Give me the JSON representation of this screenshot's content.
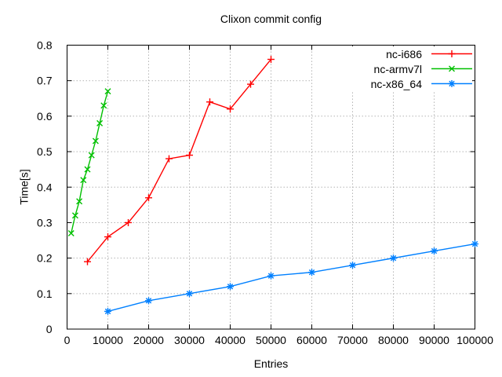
{
  "colors": {
    "background": "#ffffff",
    "grid": "#b4b4b4",
    "axis": "#000000",
    "text": "#000000"
  },
  "chart_data": {
    "type": "line",
    "title": "Clixon commit config",
    "xlabel": "Entries",
    "ylabel": "Time[s]",
    "xlim": [
      0,
      100000
    ],
    "ylim": [
      0,
      0.8
    ],
    "xticks": [
      0,
      10000,
      20000,
      30000,
      40000,
      50000,
      60000,
      70000,
      80000,
      90000,
      100000
    ],
    "xtick_labels": [
      "0",
      "10000",
      "20000",
      "30000",
      "40000",
      "50000",
      "60000",
      "70000",
      "80000",
      "90000",
      "100000"
    ],
    "yticks": [
      0,
      0.1,
      0.2,
      0.3,
      0.4,
      0.5,
      0.6,
      0.7,
      0.8
    ],
    "ytick_labels": [
      "0",
      "0.1",
      "0.2",
      "0.3",
      "0.4",
      "0.5",
      "0.6",
      "0.7",
      "0.8"
    ],
    "grid": true,
    "legend_position": "top-right-inside",
    "series": [
      {
        "name": "nc-i686",
        "color": "#ff0000",
        "marker": "plus",
        "x": [
          5000,
          10000,
          15000,
          20000,
          25000,
          30000,
          35000,
          40000,
          45000,
          50000
        ],
        "y": [
          0.19,
          0.26,
          0.3,
          0.37,
          0.48,
          0.49,
          0.64,
          0.62,
          0.69,
          0.76
        ]
      },
      {
        "name": "nc-armv7l",
        "color": "#00c000",
        "marker": "cross",
        "x": [
          1000,
          2000,
          3000,
          4000,
          5000,
          6000,
          7000,
          8000,
          9000,
          10000
        ],
        "y": [
          0.27,
          0.32,
          0.36,
          0.42,
          0.45,
          0.49,
          0.53,
          0.58,
          0.63,
          0.67
        ]
      },
      {
        "name": "nc-x86_64",
        "color": "#0080ff",
        "marker": "asterisk",
        "x": [
          10000,
          20000,
          30000,
          40000,
          50000,
          60000,
          70000,
          80000,
          90000,
          100000
        ],
        "y": [
          0.05,
          0.08,
          0.1,
          0.12,
          0.15,
          0.16,
          0.18,
          0.2,
          0.22,
          0.24
        ]
      }
    ]
  }
}
